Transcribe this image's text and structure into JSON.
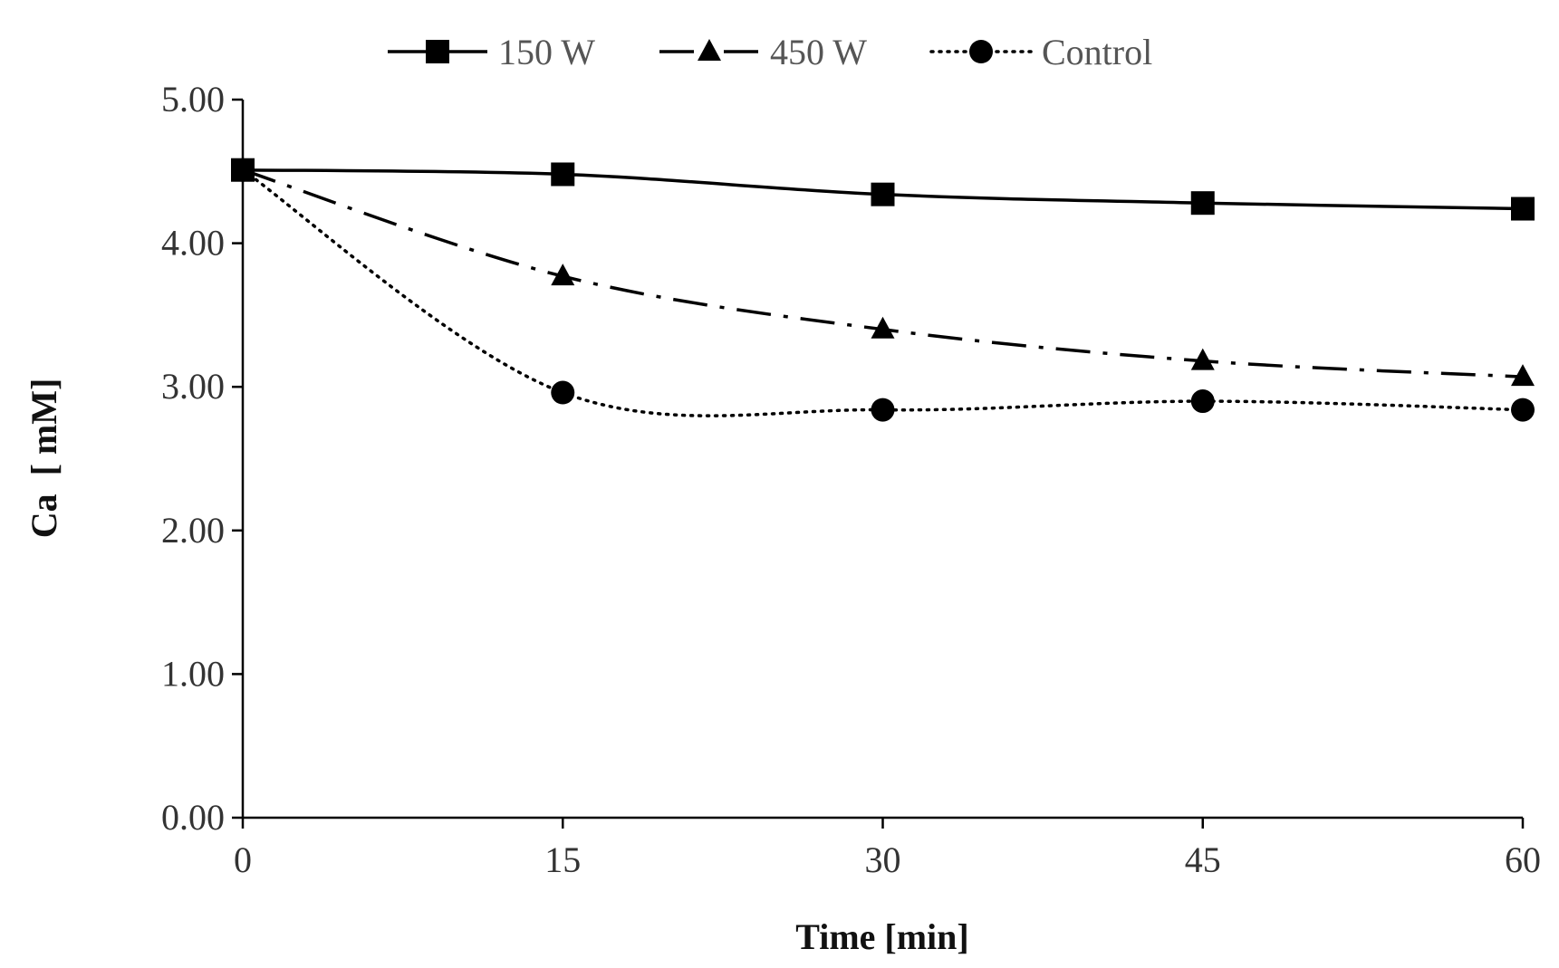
{
  "chart_data": {
    "type": "line",
    "title": "",
    "xlabel": "Time [min]",
    "ylabel": "Ca  [ mM]",
    "x": [
      0,
      15,
      30,
      45,
      60
    ],
    "xlim": [
      0,
      60
    ],
    "ylim": [
      0,
      5
    ],
    "x_ticks": [
      "0",
      "15",
      "30",
      "45",
      "60"
    ],
    "y_ticks": [
      "0.00",
      "1.00",
      "2.00",
      "3.00",
      "4.00",
      "5.00"
    ],
    "grid": false,
    "legend_position": "top-center",
    "series": [
      {
        "name": "150 W",
        "marker": "square",
        "line": "solid",
        "color": "#000000",
        "values": [
          4.51,
          4.48,
          4.34,
          4.28,
          4.24
        ]
      },
      {
        "name": "450 W",
        "marker": "triangle",
        "line": "dash-dot",
        "color": "#000000",
        "values": [
          4.51,
          3.77,
          3.4,
          3.18,
          3.07
        ]
      },
      {
        "name": "Control",
        "marker": "circle",
        "line": "dotted",
        "color": "#000000",
        "values": [
          4.51,
          2.96,
          2.84,
          2.9,
          2.84
        ]
      }
    ]
  }
}
